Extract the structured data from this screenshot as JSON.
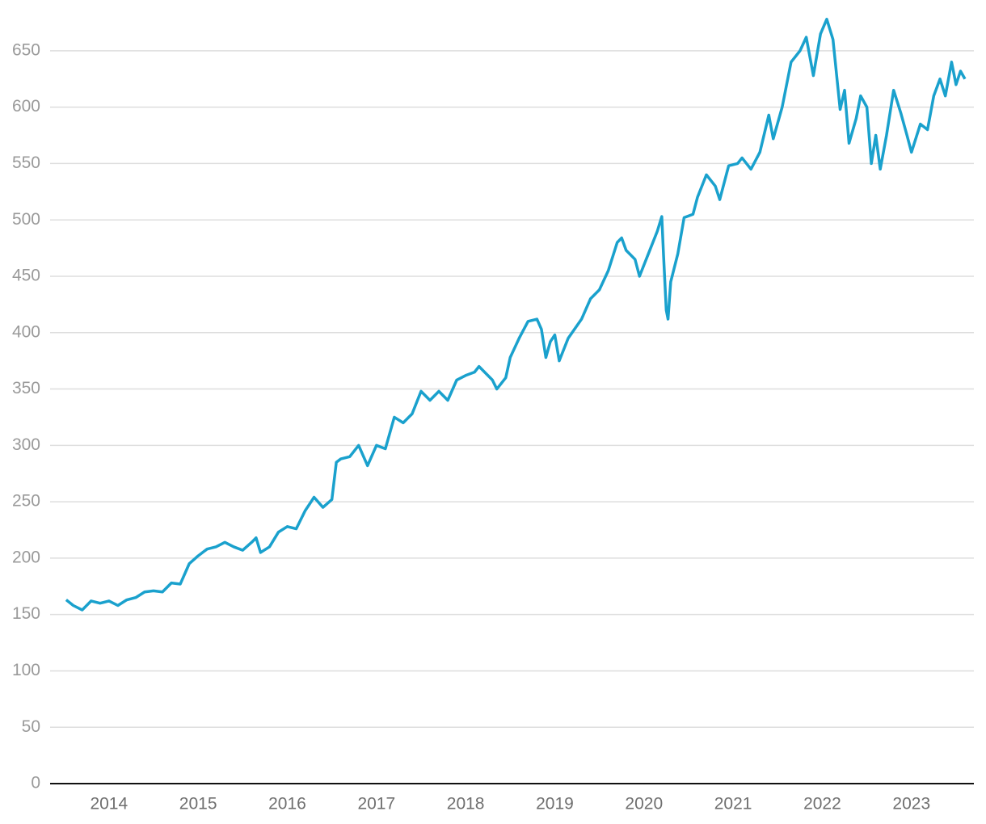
{
  "chart_data": {
    "type": "line",
    "color": "#1aa1cd",
    "grid": true,
    "xlim": [
      2013.34,
      2023.7
    ],
    "ylim": [
      0,
      680
    ],
    "xticks": [
      2014,
      2015,
      2016,
      2017,
      2018,
      2019,
      2020,
      2021,
      2022,
      2023
    ],
    "yticks": [
      0,
      50,
      100,
      150,
      200,
      250,
      300,
      350,
      400,
      450,
      500,
      550,
      600,
      650
    ],
    "x": [
      2013.52,
      2013.6,
      2013.7,
      2013.8,
      2013.9,
      2014.0,
      2014.1,
      2014.2,
      2014.3,
      2014.4,
      2014.5,
      2014.6,
      2014.7,
      2014.8,
      2014.9,
      2015.0,
      2015.1,
      2015.2,
      2015.3,
      2015.4,
      2015.5,
      2015.6,
      2015.65,
      2015.7,
      2015.8,
      2015.9,
      2016.0,
      2016.1,
      2016.2,
      2016.3,
      2016.4,
      2016.5,
      2016.55,
      2016.6,
      2016.7,
      2016.8,
      2016.9,
      2017.0,
      2017.1,
      2017.2,
      2017.3,
      2017.4,
      2017.5,
      2017.6,
      2017.7,
      2017.8,
      2017.9,
      2018.0,
      2018.1,
      2018.15,
      2018.3,
      2018.35,
      2018.45,
      2018.5,
      2018.6,
      2018.7,
      2018.8,
      2018.85,
      2018.9,
      2018.95,
      2019.0,
      2019.05,
      2019.15,
      2019.3,
      2019.4,
      2019.5,
      2019.6,
      2019.7,
      2019.75,
      2019.8,
      2019.9,
      2019.95,
      2020.0,
      2020.05,
      2020.15,
      2020.2,
      2020.22,
      2020.25,
      2020.27,
      2020.3,
      2020.38,
      2020.45,
      2020.55,
      2020.6,
      2020.7,
      2020.8,
      2020.85,
      2020.95,
      2021.05,
      2021.1,
      2021.2,
      2021.3,
      2021.4,
      2021.45,
      2021.55,
      2021.65,
      2021.75,
      2021.82,
      2021.9,
      2021.98,
      2022.05,
      2022.12,
      2022.2,
      2022.25,
      2022.3,
      2022.38,
      2022.43,
      2022.5,
      2022.55,
      2022.6,
      2022.65,
      2022.72,
      2022.8,
      2022.88,
      2022.95,
      2023.0,
      2023.1,
      2023.18,
      2023.25,
      2023.32,
      2023.38,
      2023.45,
      2023.5,
      2023.55,
      2023.6
    ],
    "values": [
      163,
      158,
      154,
      162,
      160,
      162,
      158,
      163,
      165,
      170,
      171,
      170,
      178,
      177,
      195,
      202,
      208,
      210,
      214,
      210,
      207,
      214,
      218,
      205,
      210,
      223,
      228,
      226,
      242,
      254,
      245,
      252,
      285,
      288,
      290,
      300,
      282,
      300,
      297,
      325,
      320,
      328,
      348,
      340,
      348,
      340,
      358,
      362,
      365,
      370,
      358,
      350,
      360,
      378,
      395,
      410,
      412,
      403,
      378,
      392,
      398,
      375,
      395,
      412,
      430,
      438,
      455,
      480,
      484,
      473,
      465,
      450,
      460,
      470,
      490,
      503,
      468,
      420,
      412,
      445,
      470,
      502,
      505,
      520,
      540,
      530,
      518,
      548,
      550,
      555,
      545,
      560,
      593,
      572,
      600,
      640,
      650,
      662,
      628,
      665,
      678,
      660,
      598,
      615,
      568,
      590,
      610,
      600,
      550,
      575,
      545,
      575,
      615,
      595,
      575,
      560,
      585,
      580,
      610,
      625,
      610,
      640,
      620,
      632,
      625
    ]
  }
}
